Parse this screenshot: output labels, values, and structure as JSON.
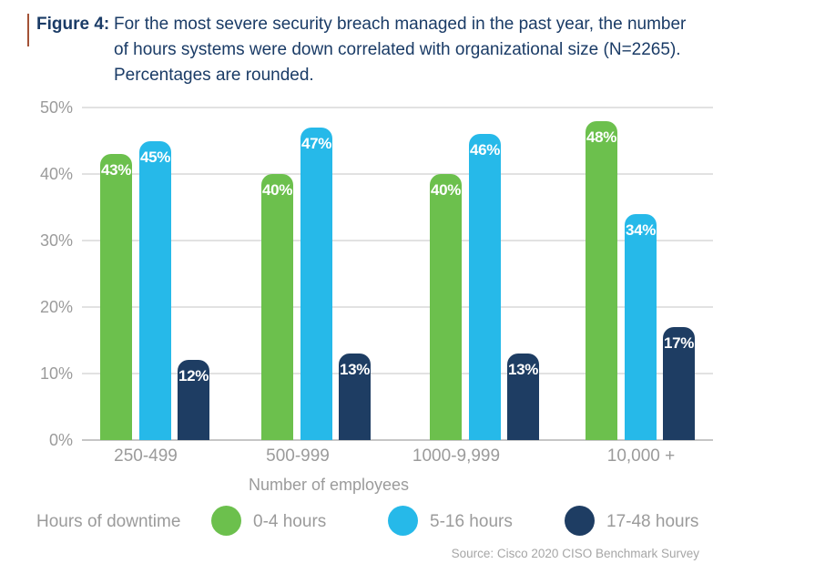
{
  "header": {
    "figure_label": "Figure 4:",
    "caption_lines": [
      "For the most severe security breach managed in the past year, the number",
      "of hours systems were down correlated with organizational size (N=2265).",
      "Percentages are rounded."
    ],
    "accent_color": "#a35236"
  },
  "chart_data": {
    "type": "bar",
    "title": "Figure 4: For the most severe security breach managed in the past year, the number of hours systems were down correlated with organizational size (N=2265). Percentages are rounded.",
    "categories": [
      "250-499",
      "500-999",
      "1000-9,999",
      "10,000 +"
    ],
    "series": [
      {
        "name": "0-4 hours",
        "color": "#6cc04d",
        "values": [
          43,
          40,
          40,
          48
        ]
      },
      {
        "name": "5-16 hours",
        "color": "#26b9e9",
        "values": [
          45,
          47,
          46,
          34
        ]
      },
      {
        "name": "17-48 hours",
        "color": "#1e3d63",
        "values": [
          12,
          13,
          13,
          17
        ]
      }
    ],
    "bar_labels": [
      [
        "43%",
        "40%",
        "40%",
        "48%"
      ],
      [
        "45%",
        "47%",
        "46%",
        "34%"
      ],
      [
        "12%",
        "13%",
        "13%",
        "17%"
      ]
    ],
    "xlabel": "Number of employees",
    "ylabel": "",
    "ylim": [
      0,
      50
    ],
    "yticks": [
      0,
      10,
      20,
      30,
      40,
      50
    ],
    "ytick_labels": [
      "0%",
      "10%",
      "20%",
      "30%",
      "40%",
      "50%"
    ],
    "grid": true,
    "legend_position": "bottom",
    "colors": {
      "grid": "#e2e2e2",
      "axis": "#c6c6c6",
      "tick_text": "#9b9b9b",
      "bar_value_text": "#ffffff",
      "caption_text": "#1a3b66"
    }
  },
  "legend": {
    "title": "Hours of downtime",
    "items": [
      {
        "label": "0-4 hours",
        "color": "#6cc04d"
      },
      {
        "label": "5-16 hours",
        "color": "#26b9e9"
      },
      {
        "label": "17-48 hours",
        "color": "#1e3d63"
      }
    ]
  },
  "footer": {
    "source": "Source: Cisco 2020 CISO Benchmark Survey"
  }
}
